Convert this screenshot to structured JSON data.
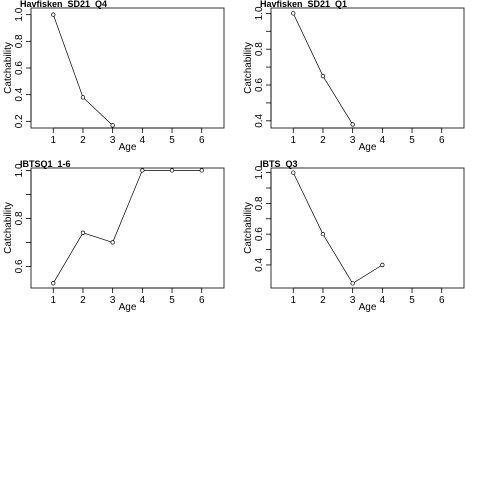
{
  "chart_data": [
    {
      "type": "line",
      "title": "Havfisken_SD21_Q4",
      "xlabel": "Age",
      "ylabel": "Catchability",
      "xlim": [
        0.25,
        6.75
      ],
      "ylim": [
        0.15,
        1.05
      ],
      "xticks": [
        1,
        2,
        3,
        4,
        5,
        6
      ],
      "yticks": [
        0.2,
        0.4,
        0.6,
        0.8,
        1.0
      ],
      "ytick_labels": [
        "0.2",
        "0.4",
        "0.6",
        "0.8",
        "1.0"
      ],
      "x": [
        1,
        2,
        3
      ],
      "y": [
        1.0,
        0.38,
        0.17
      ]
    },
    {
      "type": "line",
      "title": "Havfisken_SD21_Q1",
      "xlabel": "Age",
      "ylabel": "Catchability",
      "xlim": [
        0.25,
        6.75
      ],
      "ylim": [
        0.36,
        1.03
      ],
      "xticks": [
        1,
        2,
        3,
        4,
        5,
        6
      ],
      "yticks": [
        0.4,
        0.5,
        0.6,
        0.7,
        0.8,
        0.9,
        1.0
      ],
      "ytick_labels": [
        "0.4",
        "",
        "0.6",
        "",
        "0.8",
        "",
        "1.0"
      ],
      "x": [
        1,
        2,
        3
      ],
      "y": [
        1.0,
        0.65,
        0.38
      ]
    },
    {
      "type": "line",
      "title": "IBTSQ1_1-6",
      "xlabel": "Age",
      "ylabel": "Catchability",
      "xlim": [
        0.25,
        6.75
      ],
      "ylim": [
        0.51,
        1.01
      ],
      "xticks": [
        1,
        2,
        3,
        4,
        5,
        6
      ],
      "yticks": [
        0.6,
        0.7,
        0.8,
        0.9,
        1.0
      ],
      "ytick_labels": [
        "0.6",
        "",
        "0.8",
        "",
        "1.0"
      ],
      "x": [
        1,
        2,
        3,
        4,
        5,
        6
      ],
      "y": [
        0.53,
        0.74,
        0.7,
        1.0,
        1.0,
        1.0
      ]
    },
    {
      "type": "line",
      "title": "IBTS_Q3",
      "xlabel": "Age",
      "ylabel": "Catchability",
      "xlim": [
        0.25,
        6.75
      ],
      "ylim": [
        0.25,
        1.03
      ],
      "xticks": [
        1,
        2,
        3,
        4,
        5,
        6
      ],
      "yticks": [
        0.4,
        0.5,
        0.6,
        0.7,
        0.8,
        0.9,
        1.0
      ],
      "ytick_labels": [
        "0.4",
        "",
        "0.6",
        "",
        "0.8",
        "",
        "1.0"
      ],
      "x": [
        1,
        2,
        3,
        4
      ],
      "y": [
        1.0,
        0.6,
        0.28,
        0.4
      ]
    }
  ]
}
